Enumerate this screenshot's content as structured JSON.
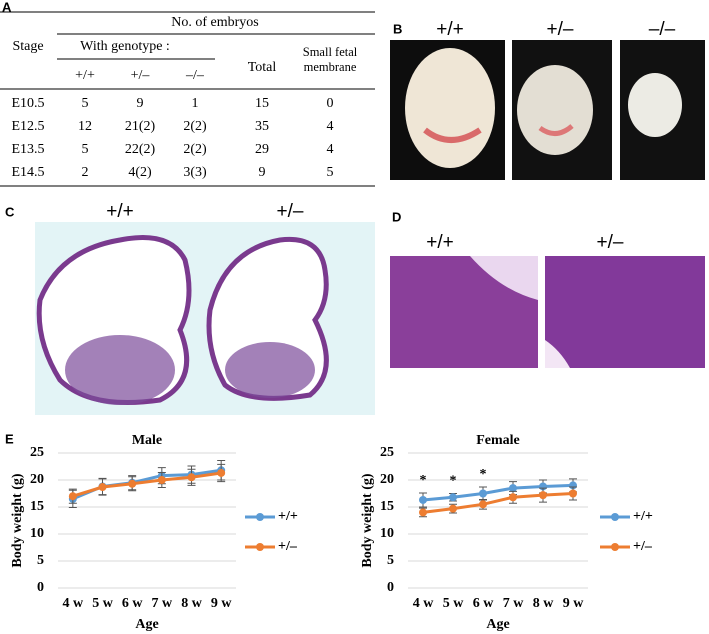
{
  "panel_labels": [
    "A",
    "B",
    "C",
    "D",
    "E"
  ],
  "panel_b": {
    "labels": [
      "+/+",
      "+/–",
      "–/–"
    ]
  },
  "panel_c": {
    "labels": [
      "+/+",
      "+/–"
    ]
  },
  "panel_d": {
    "labels": [
      "+/+",
      "+/–"
    ]
  },
  "table": {
    "group_header": "No. of embryos",
    "stage_header": "Stage",
    "genotype_header": "With genotype :",
    "columns": [
      "+/+",
      "+/–",
      "–/–"
    ],
    "total_header": "Total",
    "membrane_header": "Small fetal membrane",
    "rows": [
      [
        "E10.5",
        5,
        9,
        1,
        15,
        0
      ],
      [
        "E12.5",
        12,
        "21(2)",
        "2(2)",
        35,
        4
      ],
      [
        "E13.5",
        5,
        "22(2)",
        "2(2)",
        29,
        4
      ],
      [
        "E14.5",
        2,
        "4(2)",
        "3(3)",
        9,
        5
      ]
    ]
  },
  "chart_data": [
    {
      "type": "line",
      "title": "Male",
      "xlabel": "Age",
      "ylabel": "Body weight (g)",
      "categories": [
        "4 w",
        "5 w",
        "6 w",
        "7 w",
        "8 w",
        "9 w"
      ],
      "ylim": [
        0,
        25
      ],
      "yticks": [
        0,
        5,
        10,
        15,
        20,
        25
      ],
      "grid": true,
      "legend": "right",
      "series": [
        {
          "name": "+/+",
          "color": "#5b9bd5",
          "values": [
            16.5,
            18.8,
            19.5,
            20.8,
            21.0,
            21.8
          ],
          "errors": [
            1.6,
            1.5,
            1.3,
            1.5,
            1.6,
            1.8
          ]
        },
        {
          "name": "+/–",
          "color": "#ed7d31",
          "values": [
            17.0,
            18.7,
            19.3,
            20.0,
            20.5,
            21.3
          ],
          "errors": [
            1.3,
            1.5,
            1.3,
            1.4,
            1.5,
            1.6
          ]
        }
      ]
    },
    {
      "type": "line",
      "title": "Female",
      "xlabel": "Age",
      "ylabel": "Body weight (g)",
      "categories": [
        "4 w",
        "5 w",
        "6 w",
        "7 w",
        "8 w",
        "9 w"
      ],
      "ylim": [
        0,
        25
      ],
      "yticks": [
        0,
        5,
        10,
        15,
        20,
        25
      ],
      "grid": true,
      "legend": "right",
      "series": [
        {
          "name": "+/+",
          "color": "#5b9bd5",
          "values": [
            16.3,
            16.8,
            17.5,
            18.5,
            18.8,
            19.0
          ],
          "errors": [
            1.3,
            0.7,
            1.2,
            1.2,
            1.2,
            1.2
          ]
        },
        {
          "name": "+/–",
          "color": "#ed7d31",
          "values": [
            14.0,
            14.7,
            15.5,
            16.8,
            17.2,
            17.5
          ],
          "errors": [
            0.8,
            0.8,
            0.9,
            1.1,
            1.3,
            1.2
          ]
        }
      ],
      "annotations": [
        {
          "text": "*",
          "x": "4 w"
        },
        {
          "text": "*",
          "x": "5 w"
        },
        {
          "text": "*",
          "x": "6 w"
        }
      ]
    }
  ]
}
